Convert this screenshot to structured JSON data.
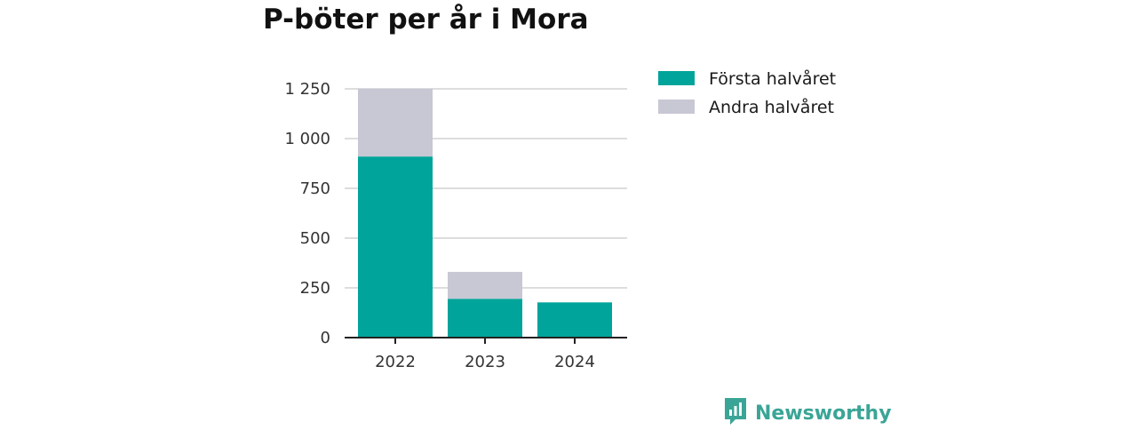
{
  "title": "P-böter per år i Mora",
  "brand": {
    "name": "Newsworthy"
  },
  "colors": {
    "first_half": "#00a49a",
    "second_half": "#c8c7d4",
    "grid": "#dddddd",
    "axis": "#222222",
    "brand": "#3aa596"
  },
  "chart_data": {
    "type": "bar",
    "stacked": true,
    "title": "P-böter per år i Mora",
    "categories": [
      "2022",
      "2023",
      "2024"
    ],
    "series": [
      {
        "name": "Första halvåret",
        "values": [
          910,
          195,
          177
        ]
      },
      {
        "name": "Andra halvåret",
        "values": [
          340,
          135,
          0
        ]
      }
    ],
    "y_ticks": [
      0,
      250,
      500,
      750,
      1000,
      1250
    ],
    "y_tick_labels": [
      "0",
      "250",
      "500",
      "750",
      "1 000",
      "1 250"
    ],
    "ylim": [
      0,
      1250
    ],
    "grid": true,
    "legend_position": "right"
  }
}
